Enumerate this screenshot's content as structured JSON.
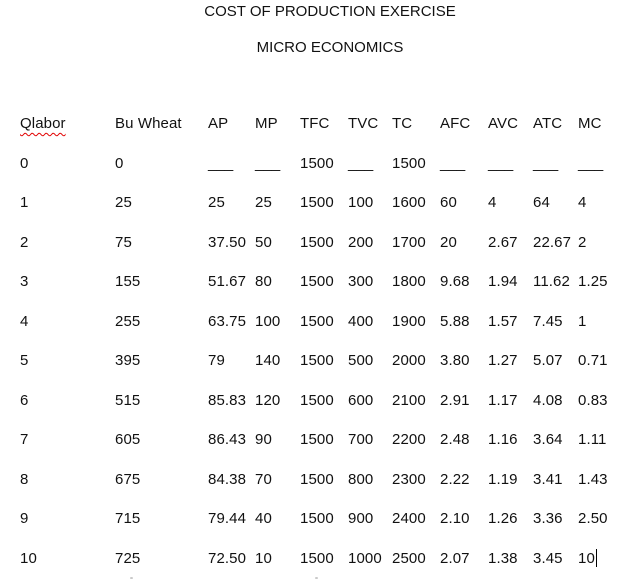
{
  "titles": {
    "line1": "COST OF PRODUCTION EXERCISE",
    "line2": "MICRO ECONOMICS"
  },
  "table": {
    "columns": [
      "Qlabor",
      "Bu Wheat",
      "AP",
      "MP",
      "TFC",
      "TVC",
      "TC",
      "AFC",
      "AVC",
      "ATC",
      "MC"
    ],
    "rows": [
      [
        "0",
        "0",
        "___",
        "___",
        "1500",
        "___",
        "1500",
        "___",
        "___",
        "___",
        "___"
      ],
      [
        "1",
        "25",
        "25",
        "25",
        "1500",
        "100",
        "1600",
        "60",
        "4",
        "64",
        "4"
      ],
      [
        "2",
        "75",
        "37.50",
        "50",
        "1500",
        "200",
        "1700",
        "20",
        "2.67",
        "22.67",
        "2"
      ],
      [
        "3",
        "155",
        "51.67",
        "80",
        "1500",
        "300",
        "1800",
        "9.68",
        "1.94",
        "11.62",
        "1.25"
      ],
      [
        "4",
        "255",
        "63.75",
        "100",
        "1500",
        "400",
        "1900",
        "5.88",
        "1.57",
        "7.45",
        "1"
      ],
      [
        "5",
        "395",
        "79",
        "140",
        "1500",
        "500",
        "2000",
        "3.80",
        "1.27",
        "5.07",
        "0.71"
      ],
      [
        "6",
        "515",
        "85.83",
        "120",
        "1500",
        "600",
        "2100",
        "2.91",
        "1.17",
        "4.08",
        "0.83"
      ],
      [
        "7",
        "605",
        "86.43",
        "90",
        "1500",
        "700",
        "2200",
        "2.48",
        "1.16",
        "3.64",
        "1.11"
      ],
      [
        "8",
        "675",
        "84.38",
        "70",
        "1500",
        "800",
        "2300",
        "2.22",
        "1.19",
        "3.41",
        "1.43"
      ],
      [
        "9",
        "715",
        "79.44",
        "40",
        "1500",
        "900",
        "2400",
        "2.10",
        "1.26",
        "3.36",
        "2.50"
      ],
      [
        "10",
        "725",
        "72.50",
        "10",
        "1500",
        "1000",
        "2500",
        "2.07",
        "1.38",
        "3.45",
        "10"
      ]
    ],
    "cursor": {
      "row": 10,
      "col": 10
    }
  },
  "spellcheck": {
    "flagged_word": "Qlabor",
    "underline_color": "#e10000"
  },
  "colors": {
    "text": "#111111",
    "background": "#ffffff"
  }
}
